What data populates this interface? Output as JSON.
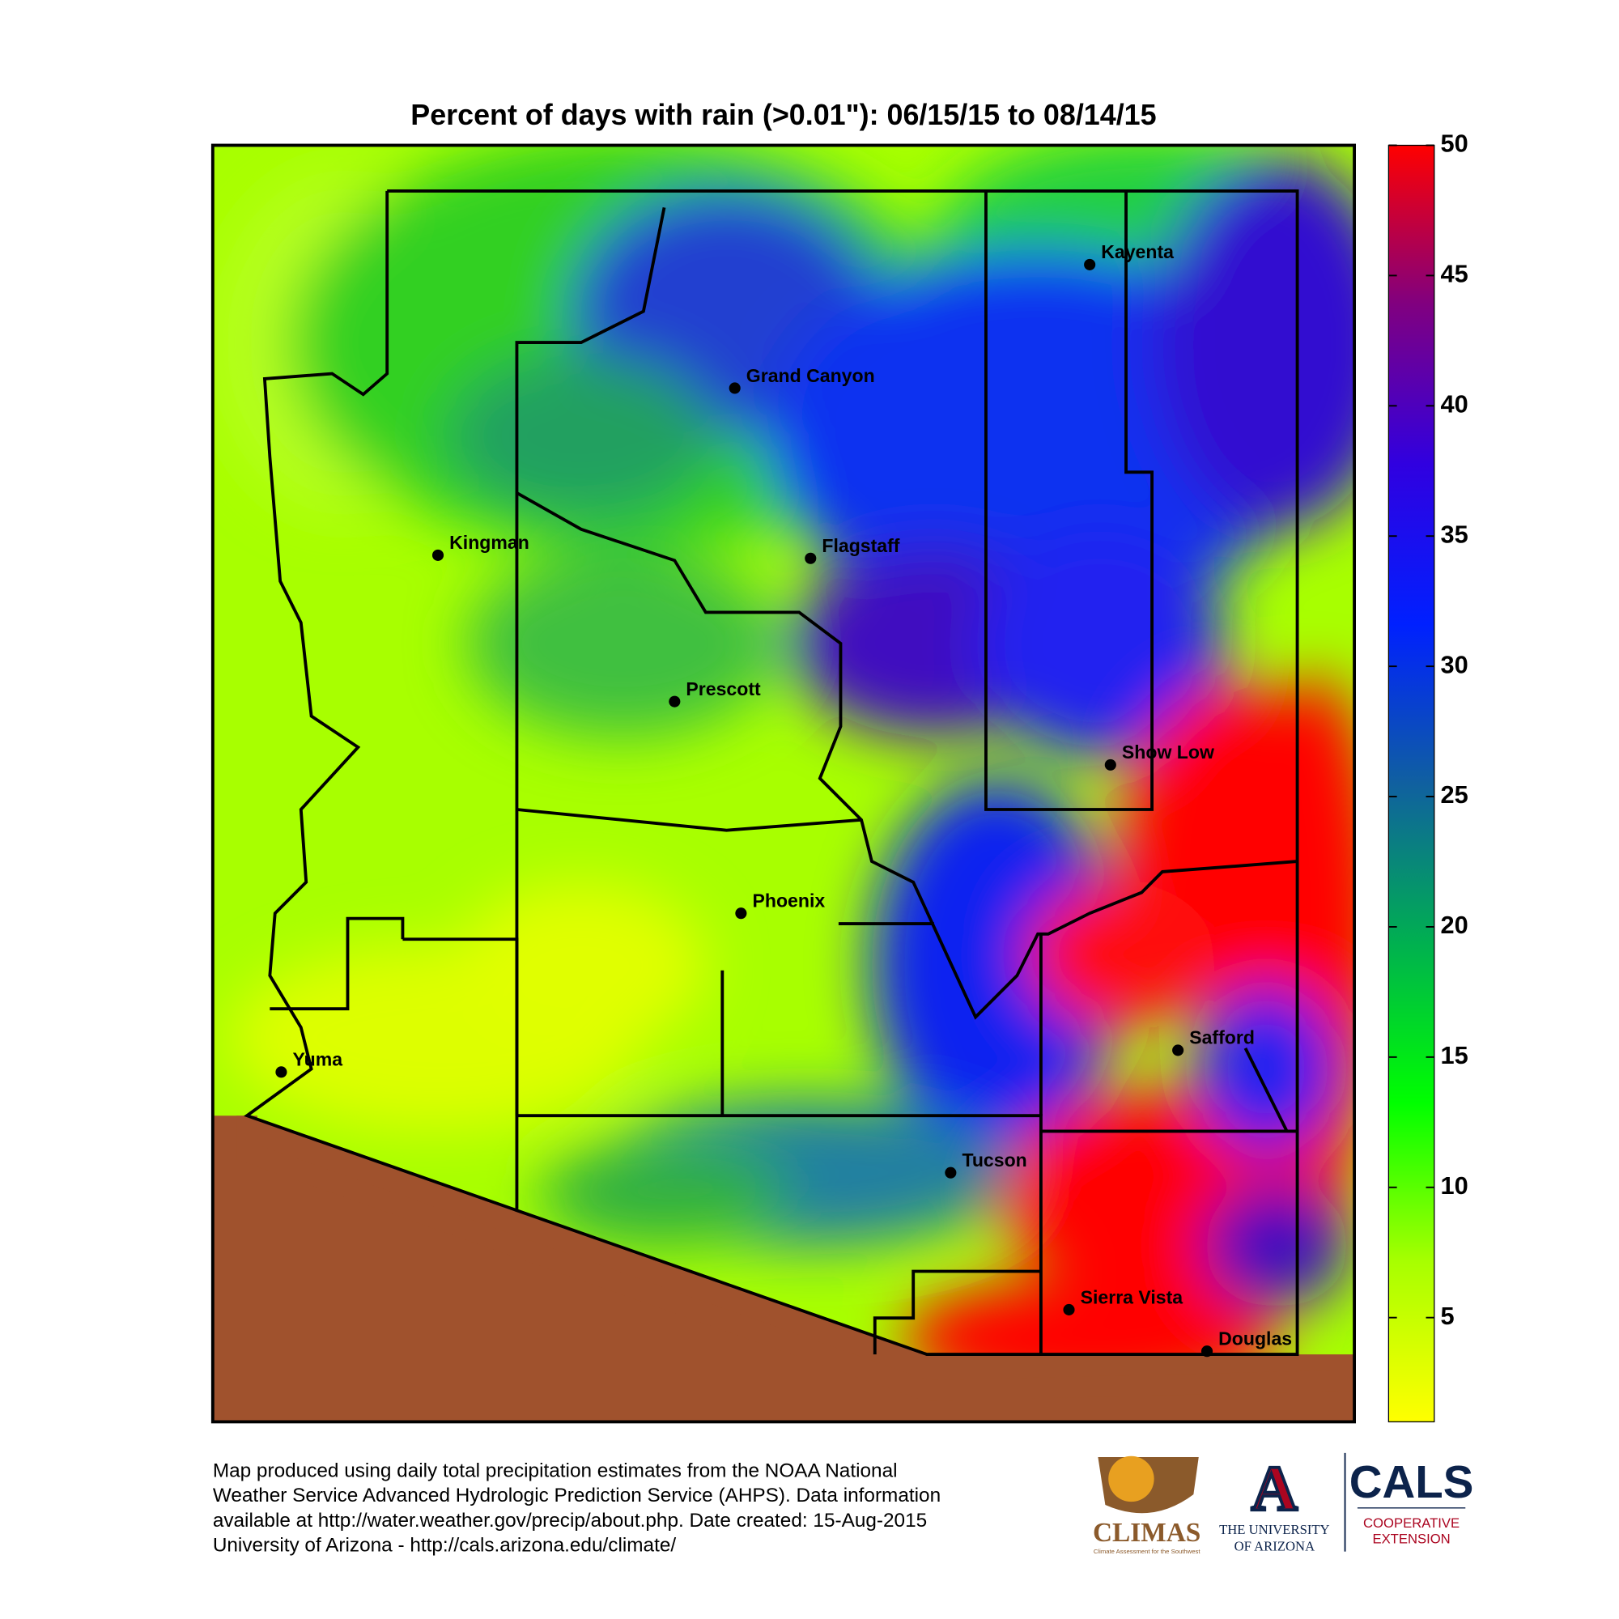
{
  "title": "Percent of days with rain (>0.01\"): 06/15/15 to 08/14/15",
  "colorbar": {
    "lim": [
      1,
      50
    ],
    "ticks": [
      5,
      10,
      15,
      20,
      25,
      30,
      35,
      40,
      45,
      50
    ],
    "colormap": [
      "#ffff00",
      "#a8ff00",
      "#00ff00",
      "#00b050",
      "#1060a0",
      "#0020ff",
      "#3000e0",
      "#800080",
      "#ff0000"
    ]
  },
  "cities": [
    "Kayenta",
    "Grand Canyon",
    "Kingman",
    "Flagstaff",
    "Prescott",
    "Show Low",
    "Phoenix",
    "Safford",
    "Yuma",
    "Tucson",
    "Sierra Vista",
    "Douglas"
  ],
  "footer": [
    "Map produced using daily total precipitation estimates from the NOAA National",
    "Weather Service Advanced Hydrologic Prediction Service (AHPS). Data information",
    "available at http://water.weather.gov/precip/about.php. Date created: 15-Aug-2015",
    "University of Arizona - http://cals.arizona.edu/climate/"
  ],
  "logos": {
    "climas": "CLIMAS",
    "climas_sub": "Climate Assessment for the Southwest",
    "ua_letter": "A",
    "ua1": "THE UNIVERSITY",
    "ua2": "OF ARIZONA",
    "cals": "CALS",
    "cals1": "COOPERATIVE",
    "cals2": "EXTENSION"
  }
}
